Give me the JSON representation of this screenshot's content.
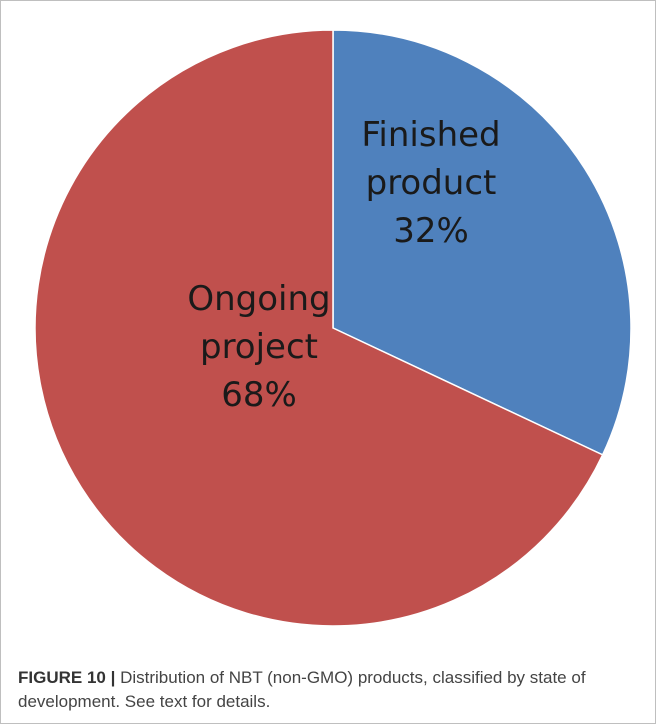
{
  "chart_data": {
    "type": "pie",
    "title": "",
    "categories": [
      "Finished product",
      "Ongoing project"
    ],
    "values": [
      32,
      68
    ],
    "data_labels": [
      [
        "Finished",
        "product",
        "32%"
      ],
      [
        "Ongoing",
        "project",
        "68%"
      ]
    ],
    "colors": [
      "#4f81bd",
      "#c0504d"
    ],
    "start": "top",
    "direction": "clockwise",
    "legend": "none"
  },
  "caption": {
    "label": "FIGURE 10 |",
    "text": " Distribution of NBT (non-GMO) products, classified by state of development. See text for details."
  }
}
